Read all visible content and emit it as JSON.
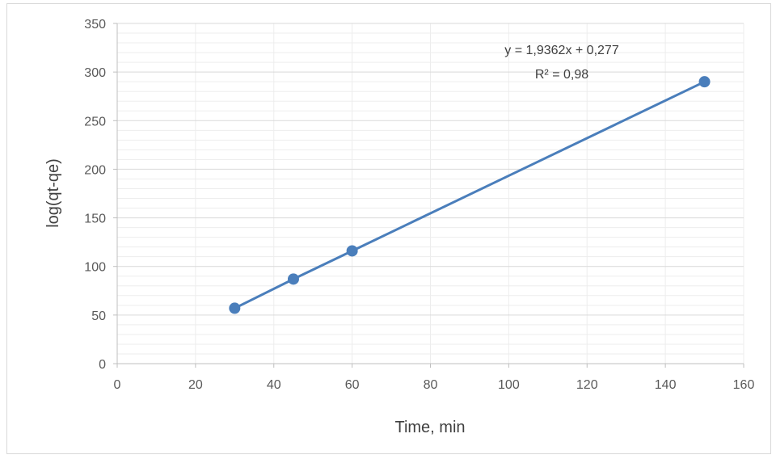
{
  "chart_data": {
    "type": "scatter",
    "title": "",
    "xlabel": "Time, min",
    "ylabel": "log(qt-qe)",
    "xlim": [
      0,
      160
    ],
    "ylim": [
      0,
      350
    ],
    "x_ticks": [
      0,
      20,
      40,
      60,
      80,
      100,
      120,
      140,
      160
    ],
    "y_ticks": [
      0,
      50,
      100,
      150,
      200,
      250,
      300,
      350
    ],
    "grid": true,
    "series": [
      {
        "x": [
          30,
          45,
          60,
          150
        ],
        "y": [
          57,
          87,
          116,
          290
        ],
        "color": "#4a7ebb",
        "line": "trendline"
      }
    ],
    "trendline": {
      "equation": "y = 1,9362x + 0,277",
      "r2": "R² = 0,98",
      "slope": 1.9362,
      "intercept": 0.277
    }
  }
}
